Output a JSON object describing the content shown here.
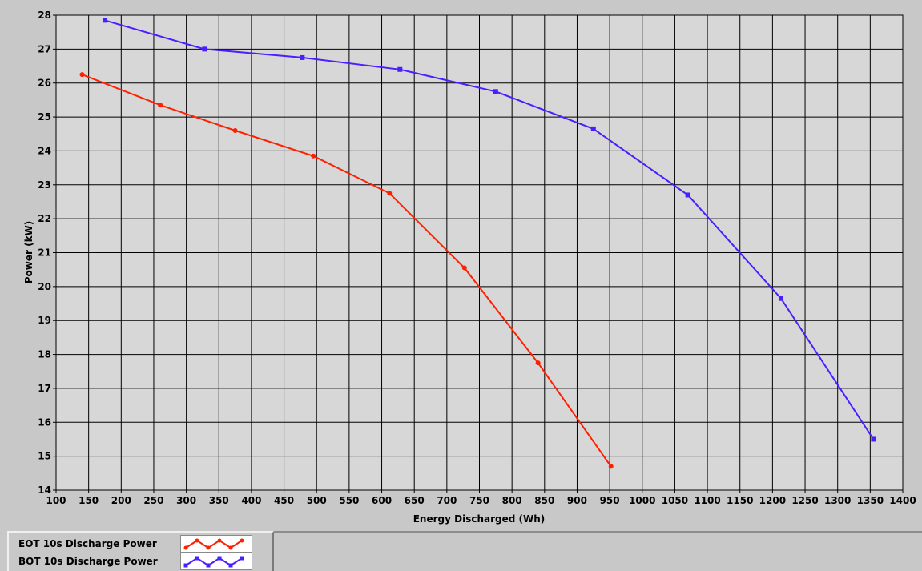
{
  "chart_data": {
    "type": "line",
    "xlabel": "Energy Discharged (Wh)",
    "ylabel": "Power (kW)",
    "xlim": [
      100,
      1400
    ],
    "ylim": [
      14,
      28
    ],
    "x_ticks": [
      100,
      150,
      200,
      250,
      300,
      350,
      400,
      450,
      500,
      550,
      600,
      650,
      700,
      750,
      800,
      850,
      900,
      950,
      1000,
      1050,
      1100,
      1150,
      1200,
      1250,
      1300,
      1350,
      1400
    ],
    "y_ticks": [
      14,
      15,
      16,
      17,
      18,
      19,
      20,
      21,
      22,
      23,
      24,
      25,
      26,
      27,
      28
    ],
    "grid": true,
    "legend_position": "bottom-left",
    "series": [
      {
        "name": "EOT 10s Discharge Power",
        "color": "#ff2000",
        "marker": "circle",
        "points": [
          [
            140,
            26.25
          ],
          [
            260,
            25.35
          ],
          [
            375,
            24.6
          ],
          [
            495,
            23.85
          ],
          [
            612,
            22.75
          ],
          [
            727,
            20.55
          ],
          [
            840,
            17.75
          ],
          [
            952,
            14.7
          ]
        ]
      },
      {
        "name": "BOT 10s Discharge Power",
        "color": "#4b1eff",
        "marker": "square",
        "points": [
          [
            175,
            27.85
          ],
          [
            328,
            27.0
          ],
          [
            478,
            26.75
          ],
          [
            628,
            26.4
          ],
          [
            775,
            25.75
          ],
          [
            925,
            24.65
          ],
          [
            1070,
            22.7
          ],
          [
            1213,
            19.65
          ],
          [
            1355,
            15.5
          ]
        ]
      }
    ]
  }
}
